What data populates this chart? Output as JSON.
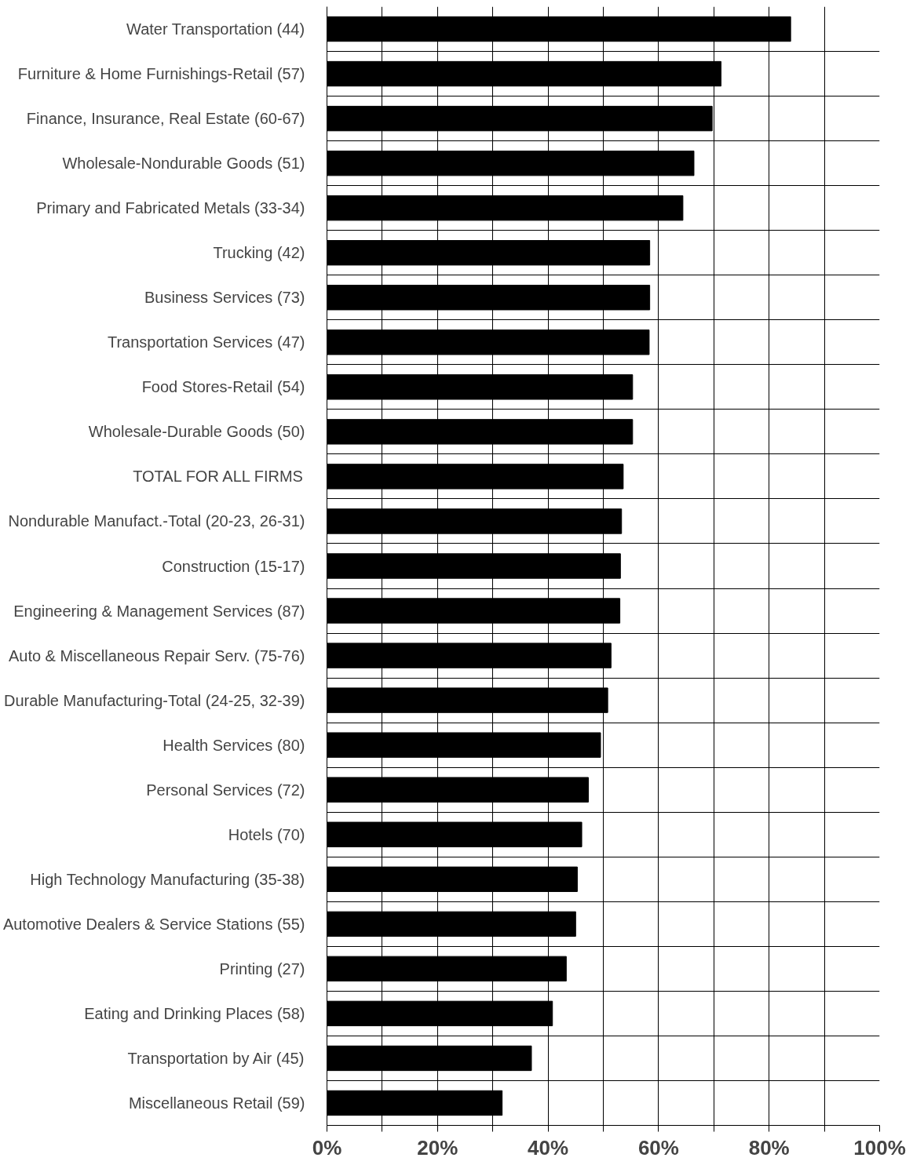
{
  "chart_data": {
    "type": "bar",
    "orientation": "horizontal",
    "categories": [
      "Water Transportation (44)",
      "Furniture & Home Furnishings-Retail (57)",
      "Finance, Insurance, Real Estate (60-67)",
      "Wholesale-Nondurable Goods (51)",
      "Primary and Fabricated Metals (33-34)",
      "Trucking (42)",
      "Business Services (73)",
      "Transportation Services (47)",
      "Food Stores-Retail (54)",
      "Wholesale-Durable Goods (50)",
      "TOTAL FOR ALL FIRMS",
      "Nondurable Manufact.-Total (20-23, 26-31)",
      "Construction (15-17)",
      "Engineering & Management Services (87)",
      "Auto & Miscellaneous Repair Serv. (75-76)",
      "Durable Manufacturing-Total (24-25, 32-39)",
      "Health Services (80)",
      "Personal Services (72)",
      "Hotels (70)",
      "High Technology Manufacturing (35-38)",
      "Automotive Dealers & Service Stations (55)",
      "Printing (27)",
      "Eating and Drinking Places (58)",
      "Transportation by Air (45)",
      "Miscellaneous Retail (59)"
    ],
    "values": [
      83.9,
      71.3,
      69.7,
      66.4,
      64.4,
      58.4,
      58.4,
      58.3,
      55.3,
      55.3,
      53.6,
      53.3,
      53.1,
      53.0,
      51.4,
      50.8,
      49.5,
      47.3,
      46.1,
      45.3,
      45.0,
      43.3,
      40.8,
      37.0,
      31.7
    ],
    "color": "#000000",
    "xlim": [
      0,
      100
    ],
    "xticks": [
      {
        "value": 0,
        "label": "0%"
      },
      {
        "value": 10,
        "label": null
      },
      {
        "value": 20,
        "label": "20%"
      },
      {
        "value": 30,
        "label": null
      },
      {
        "value": 40,
        "label": "40%"
      },
      {
        "value": 50,
        "label": null
      },
      {
        "value": 60,
        "label": "60%"
      },
      {
        "value": 70,
        "label": null
      },
      {
        "value": 80,
        "label": "80%"
      },
      {
        "value": 90,
        "label": null
      },
      {
        "value": 100,
        "label": "100%"
      }
    ],
    "grid": true
  }
}
